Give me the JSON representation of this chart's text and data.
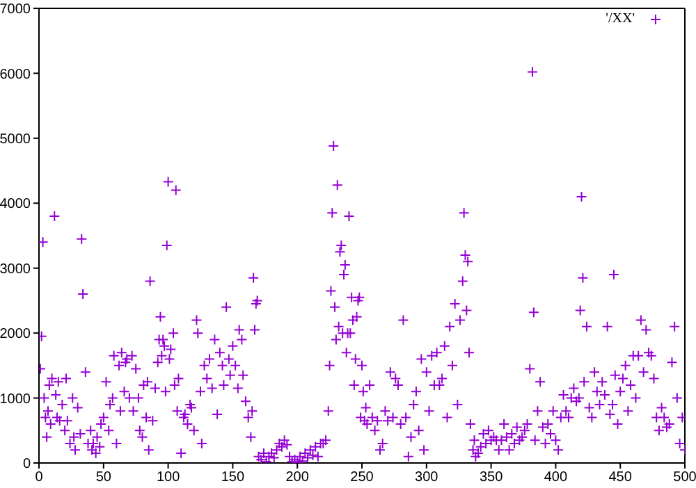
{
  "chart_data": {
    "type": "scatter",
    "marker": "cross",
    "legend": "top right",
    "xlim": [
      0,
      500
    ],
    "xticks": [
      0,
      50,
      100,
      150,
      200,
      250,
      300,
      350,
      400,
      450,
      500
    ],
    "ylim": [
      0,
      7000
    ],
    "yticks": [
      0,
      1000,
      2000,
      3000,
      4000,
      5000,
      6000,
      7000
    ],
    "x": [
      1,
      2,
      3,
      4,
      5,
      6,
      7,
      8,
      9,
      10,
      12,
      13,
      14,
      15,
      16,
      18,
      20,
      21,
      22,
      24,
      26,
      27,
      28,
      30,
      32,
      33,
      34,
      36,
      38,
      40,
      41,
      42,
      44,
      45,
      47,
      48,
      50,
      52,
      54,
      55,
      57,
      58,
      60,
      62,
      63,
      64,
      66,
      67,
      68,
      70,
      72,
      73,
      75,
      77,
      78,
      80,
      81,
      83,
      84,
      85,
      86,
      88,
      90,
      92,
      93,
      94,
      95,
      96,
      97,
      98,
      99,
      100,
      101,
      102,
      104,
      105,
      106,
      107,
      108,
      110,
      112,
      113,
      115,
      117,
      118,
      120,
      122,
      123,
      125,
      126,
      128,
      130,
      132,
      134,
      136,
      138,
      140,
      142,
      143,
      145,
      147,
      148,
      150,
      152,
      154,
      155,
      157,
      158,
      160,
      162,
      164,
      165,
      166,
      167,
      168,
      169,
      170,
      172,
      174,
      176,
      178,
      180,
      182,
      184,
      186,
      188,
      190,
      192,
      194,
      196,
      198,
      200,
      202,
      204,
      206,
      208,
      210,
      212,
      214,
      216,
      218,
      220,
      222,
      224,
      225,
      226,
      227,
      228,
      229,
      230,
      231,
      232,
      233,
      234,
      235,
      236,
      237,
      238,
      239,
      240,
      241,
      242,
      243,
      244,
      245,
      246,
      247,
      248,
      249,
      250,
      251,
      252,
      253,
      254,
      256,
      258,
      260,
      262,
      264,
      266,
      268,
      270,
      272,
      274,
      276,
      278,
      280,
      282,
      284,
      286,
      288,
      290,
      292,
      294,
      296,
      298,
      300,
      302,
      304,
      306,
      308,
      310,
      312,
      314,
      316,
      318,
      320,
      322,
      324,
      326,
      328,
      329,
      330,
      331,
      332,
      333,
      334,
      336,
      337,
      338,
      340,
      342,
      344,
      346,
      348,
      350,
      352,
      354,
      356,
      358,
      360,
      362,
      364,
      366,
      368,
      370,
      372,
      374,
      376,
      378,
      380,
      382,
      383,
      384,
      386,
      388,
      390,
      392,
      394,
      396,
      398,
      400,
      402,
      404,
      406,
      408,
      410,
      412,
      414,
      416,
      418,
      419,
      420,
      421,
      422,
      424,
      426,
      428,
      430,
      432,
      434,
      436,
      438,
      440,
      442,
      444,
      445,
      446,
      448,
      450,
      452,
      454,
      456,
      458,
      460,
      462,
      464,
      466,
      468,
      470,
      472,
      474,
      476,
      478,
      480,
      482,
      484,
      486,
      488,
      490,
      492,
      494,
      496,
      498,
      500
    ],
    "series": [
      {
        "name": "'/XX'",
        "color": "#9400d3",
        "values": [
          1450,
          1950,
          3400,
          1000,
          700,
          400,
          800,
          1200,
          600,
          1300,
          3800,
          1050,
          700,
          1250,
          650,
          900,
          500,
          1300,
          650,
          300,
          1000,
          400,
          200,
          850,
          450,
          3450,
          2600,
          1400,
          300,
          500,
          200,
          300,
          150,
          400,
          250,
          600,
          700,
          1250,
          500,
          900,
          1000,
          1650,
          300,
          1500,
          800,
          1700,
          1100,
          1550,
          1600,
          1000,
          1650,
          800,
          1450,
          1000,
          500,
          400,
          1200,
          700,
          1250,
          200,
          2800,
          650,
          1150,
          1550,
          1900,
          2250,
          1650,
          1900,
          1800,
          1100,
          3350,
          4330,
          1600,
          1750,
          2000,
          1200,
          4200,
          800,
          1300,
          150,
          700,
          750,
          600,
          900,
          850,
          500,
          2200,
          2000,
          1100,
          300,
          1500,
          1300,
          1600,
          1150,
          1900,
          750,
          1700,
          1500,
          1200,
          2400,
          1600,
          1350,
          1800,
          1500,
          1150,
          2050,
          1900,
          1350,
          950,
          700,
          400,
          800,
          2850,
          2050,
          2450,
          2500,
          100,
          50,
          150,
          20,
          100,
          150,
          80,
          200,
          300,
          250,
          350,
          280,
          100,
          20,
          50,
          10,
          100,
          30,
          150,
          80,
          200,
          120,
          250,
          100,
          300,
          300,
          350,
          800,
          1500,
          2650,
          3850,
          4880,
          2400,
          1900,
          4280,
          2100,
          3250,
          3350,
          2000,
          2900,
          3050,
          1700,
          2000,
          3800,
          2000,
          2550,
          2200,
          1200,
          1600,
          2250,
          2500,
          2550,
          700,
          1500,
          1100,
          650,
          850,
          600,
          1200,
          700,
          500,
          650,
          200,
          300,
          800,
          650,
          1400,
          700,
          1300,
          1200,
          600,
          2200,
          700,
          100,
          400,
          900,
          1100,
          500,
          1600,
          200,
          1400,
          800,
          1650,
          1200,
          1700,
          1200,
          1300,
          1800,
          700,
          2100,
          1500,
          2450,
          900,
          2200,
          2800,
          3850,
          3200,
          2350,
          3100,
          1700,
          600,
          200,
          350,
          100,
          150,
          250,
          450,
          300,
          500,
          350,
          400,
          350,
          200,
          350,
          600,
          400,
          200,
          450,
          300,
          550,
          350,
          400,
          500,
          600,
          1450,
          6020,
          2320,
          350,
          800,
          1250,
          550,
          300,
          600,
          450,
          800,
          350,
          200,
          700,
          1050,
          800,
          700,
          1000,
          1150,
          950,
          1000,
          2350,
          4100,
          2850,
          1250,
          2100,
          850,
          700,
          1400,
          1100,
          900,
          1250,
          1050,
          2100,
          750,
          900,
          2900,
          1350,
          600,
          1100,
          1300,
          1500,
          800,
          1200,
          1650,
          1000,
          1650,
          2200,
          1400,
          2050,
          1700,
          1650,
          1300,
          700,
          500,
          850,
          700,
          550,
          600,
          1550,
          2100,
          1000,
          300,
          700,
          200
        ]
      }
    ]
  }
}
